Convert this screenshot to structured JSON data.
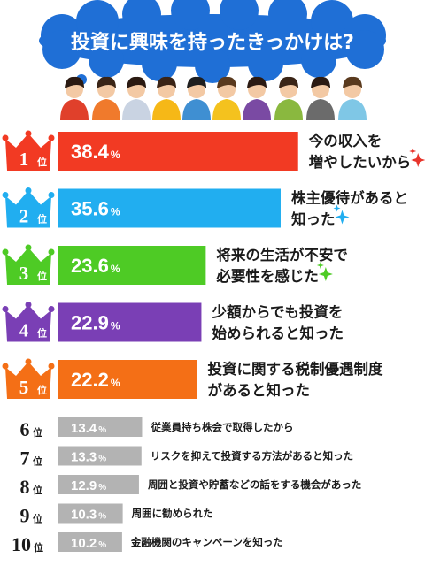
{
  "title": "投資に興味を持ったきっかけは?",
  "colors": {
    "cloud": "#1f6fd6",
    "gold": "#f3b22a",
    "gray_bar": "#b3b3b3",
    "underline": "#b36bd6"
  },
  "chart_data": {
    "type": "bar",
    "orientation": "horizontal",
    "unit": "%",
    "rank_suffix": "位",
    "xlim": [
      0,
      40
    ],
    "items": [
      {
        "rank": "1",
        "value": "38.4",
        "color": "#f23a23",
        "label_lines": [
          "今の収入を",
          "増やしたいから"
        ],
        "sparkle": "red"
      },
      {
        "rank": "2",
        "value": "35.6",
        "color": "#21aef0",
        "label_lines": [
          "株主優待があると",
          "知った"
        ],
        "sparkle": "blue"
      },
      {
        "rank": "3",
        "value": "23.6",
        "color": "#4ecb25",
        "label_lines": [
          "将来の生活が不安で",
          "必要性を感じた"
        ],
        "sparkle": "green"
      },
      {
        "rank": "4",
        "value": "22.9",
        "color": "#7a3fb5",
        "label_lines": [
          "少額からでも投資を",
          "始められると知った"
        ],
        "sparkle": ""
      },
      {
        "rank": "5",
        "value": "22.2",
        "color": "#f46f16",
        "label_lines": [
          "投資に関する税制優遇制度",
          "があると知った"
        ],
        "sparkle": ""
      },
      {
        "rank": "6",
        "value": "13.4",
        "color": "#b3b3b3",
        "label_lines": [
          "従業員持ち株会で取得したから"
        ],
        "sparkle": ""
      },
      {
        "rank": "7",
        "value": "13.3",
        "color": "#b3b3b3",
        "label_lines": [
          "リスクを抑えて投資する方法があると知った"
        ],
        "sparkle": ""
      },
      {
        "rank": "8",
        "value": "12.9",
        "color": "#b3b3b3",
        "label_lines": [
          "周囲と投資や貯蓄などの話をする機会があった"
        ],
        "sparkle": ""
      },
      {
        "rank": "9",
        "value": "10.3",
        "color": "#b3b3b3",
        "label_lines": [
          "周囲に勧められた"
        ],
        "sparkle": ""
      },
      {
        "rank": "10",
        "value": "10.2",
        "color": "#b3b3b3",
        "label_lines": [
          "金融機関のキャンペーンを知った"
        ],
        "sparkle": ""
      }
    ]
  }
}
